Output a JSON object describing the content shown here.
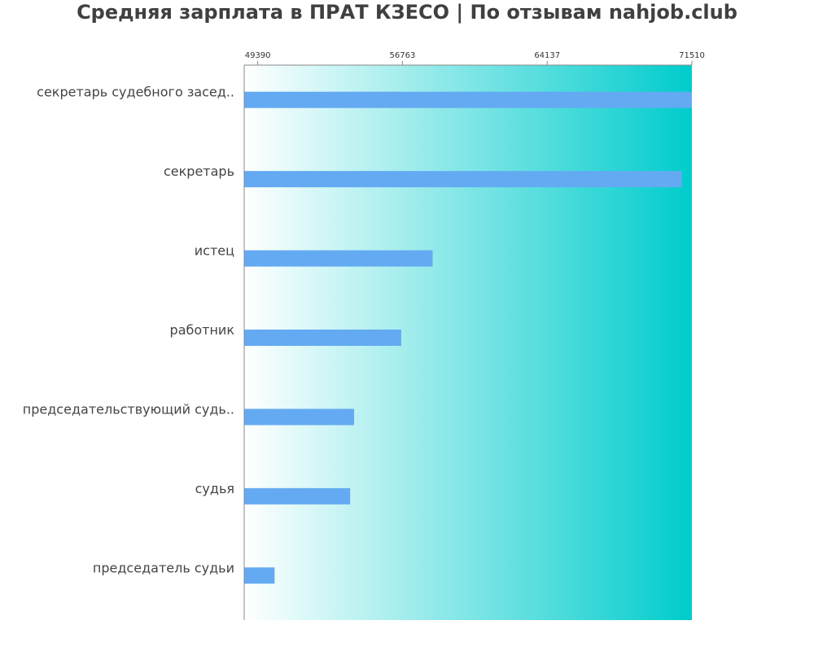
{
  "title": "Средняя зарплата в ПРАТ КЗЕСО | По отзывам nahjob.club",
  "chart_data": {
    "type": "bar",
    "orientation": "horizontal",
    "title": "Средняя зарплата в ПРАТ КЗЕСО | По отзывам nahjob.club",
    "categories": [
      "секретарь судебного засед..",
      "секретарь",
      "истец",
      "работник",
      "председательствующий судь..",
      "судья",
      "председатель судьи"
    ],
    "values": [
      71510,
      71000,
      58300,
      56700,
      54300,
      54100,
      50250
    ],
    "xlim": [
      48700,
      71510
    ],
    "tick_values": [
      49390,
      56763,
      64137,
      71510
    ],
    "tick_labels": [
      "49390",
      "56763",
      "64137",
      "71510"
    ],
    "tick_position": "top",
    "grid": false,
    "legend": "none",
    "colors": {
      "bar": "#64aaf2",
      "background_start": "#ffffff",
      "background_end": "#00cccc",
      "axis": "#888888"
    }
  }
}
